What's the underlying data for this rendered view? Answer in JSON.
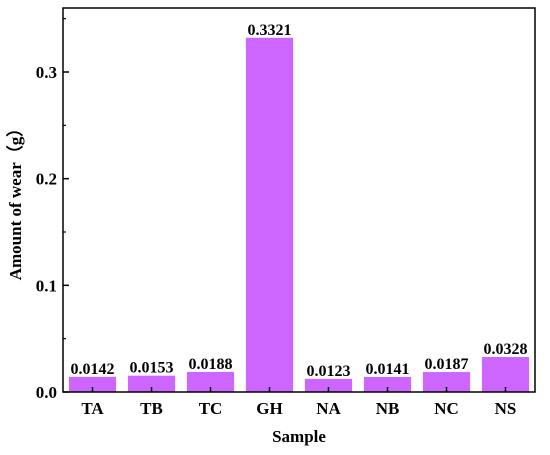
{
  "chart_data": {
    "type": "bar",
    "title": "",
    "xlabel": "Sample",
    "ylabel": "Amount of wear（g）",
    "categories": [
      "TA",
      "TB",
      "TC",
      "GH",
      "NA",
      "NB",
      "NC",
      "NS"
    ],
    "values": [
      0.0142,
      0.0153,
      0.0188,
      0.3321,
      0.0123,
      0.0141,
      0.0187,
      0.0328
    ],
    "value_labels": [
      "0.0142",
      "0.0153",
      "0.0188",
      "0.3321",
      "0.0123",
      "0.0141",
      "0.0187",
      "0.0328"
    ],
    "ylim": [
      0,
      0.36
    ],
    "yticks": [
      0.0,
      0.1,
      0.2,
      0.3
    ],
    "ytick_labels": [
      "0.0",
      "0.1",
      "0.2",
      "0.3"
    ],
    "grid": false,
    "bar_color": "#cc66ff"
  }
}
